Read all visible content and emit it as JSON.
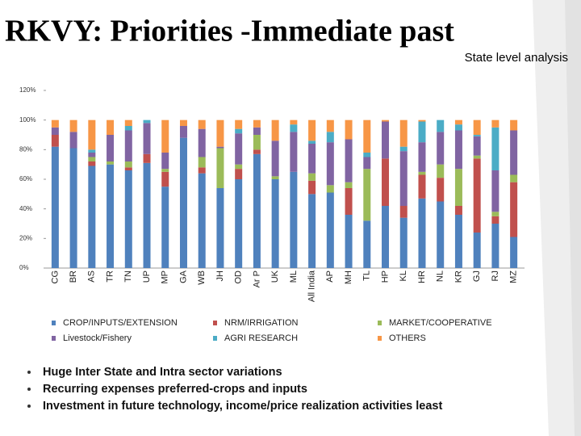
{
  "chart_data": {
    "type": "stacked_bar",
    "title": "RKVY: Priorities -Immediate past",
    "subtitle": "State level analysis",
    "categories": [
      "CG",
      "BR",
      "AS",
      "TR",
      "TN",
      "UP",
      "MP",
      "GA",
      "WB",
      "JH",
      "OD",
      "Ar P",
      "UK",
      "ML",
      "All India",
      "AP",
      "MH",
      "TL",
      "HP",
      "KL",
      "HR",
      "NL",
      "KR",
      "GJ",
      "RJ",
      "MZ"
    ],
    "series": [
      {
        "name": "CROP/INPUTS/EXTENSION",
        "color": "#4f81bd",
        "values": [
          82,
          81,
          69,
          70,
          66,
          71,
          55,
          88,
          64,
          54,
          60,
          77,
          60,
          65,
          50,
          51,
          36,
          32,
          42,
          34,
          47,
          45,
          36,
          24,
          30,
          21
        ]
      },
      {
        "name": "NRM/IRRIGATION",
        "color": "#c0504d",
        "values": [
          8,
          0,
          3,
          0,
          2,
          6,
          10,
          0,
          4,
          0,
          7,
          3,
          0,
          0,
          9,
          0,
          18,
          0,
          32,
          8,
          16,
          16,
          6,
          50,
          5,
          37
        ]
      },
      {
        "name": "MARKET/COOPERATIVE",
        "color": "#9bbb59",
        "values": [
          0,
          0,
          3,
          2,
          4,
          0,
          2,
          0,
          7,
          27,
          3,
          10,
          2,
          0,
          5,
          5,
          4,
          35,
          0,
          0,
          2,
          9,
          25,
          2,
          3,
          5
        ]
      },
      {
        "name": "Livestock/Fishery",
        "color": "#8064a2",
        "values": [
          5,
          11,
          3,
          18,
          21,
          21,
          11,
          8,
          19,
          1,
          21,
          5,
          24,
          27,
          20,
          29,
          29,
          8,
          25,
          37,
          20,
          22,
          26,
          13,
          28,
          30
        ]
      },
      {
        "name": "AGRI RESEARCH",
        "color": "#4bacc6",
        "values": [
          0,
          0,
          2,
          0,
          3,
          2,
          0,
          0,
          0,
          0,
          3,
          0,
          0,
          5,
          2,
          7,
          0,
          3,
          0,
          3,
          14,
          8,
          4,
          1,
          29,
          0
        ]
      },
      {
        "name": "OTHERS",
        "color": "#f79646",
        "values": [
          5,
          8,
          20,
          10,
          4,
          0,
          22,
          4,
          6,
          18,
          6,
          5,
          14,
          3,
          14,
          8,
          13,
          22,
          1,
          18,
          1,
          0,
          3,
          10,
          5,
          7
        ]
      }
    ],
    "ylim": [
      0,
      120
    ],
    "yticks": [
      {
        "value": 0,
        "label": "0%"
      },
      {
        "value": 20,
        "label": "20%"
      },
      {
        "value": 40,
        "label": "40%"
      },
      {
        "value": 60,
        "label": "60%"
      },
      {
        "value": 80,
        "label": "80%"
      },
      {
        "value": 100,
        "label": "100%"
      },
      {
        "value": 120,
        "label": "120%"
      }
    ],
    "grid": false
  },
  "bullets": [
    "Huge Inter State and Intra sector variations",
    "Recurring expenses preferred-crops and inputs",
    "Investment in future technology, income/price realization activities least"
  ]
}
